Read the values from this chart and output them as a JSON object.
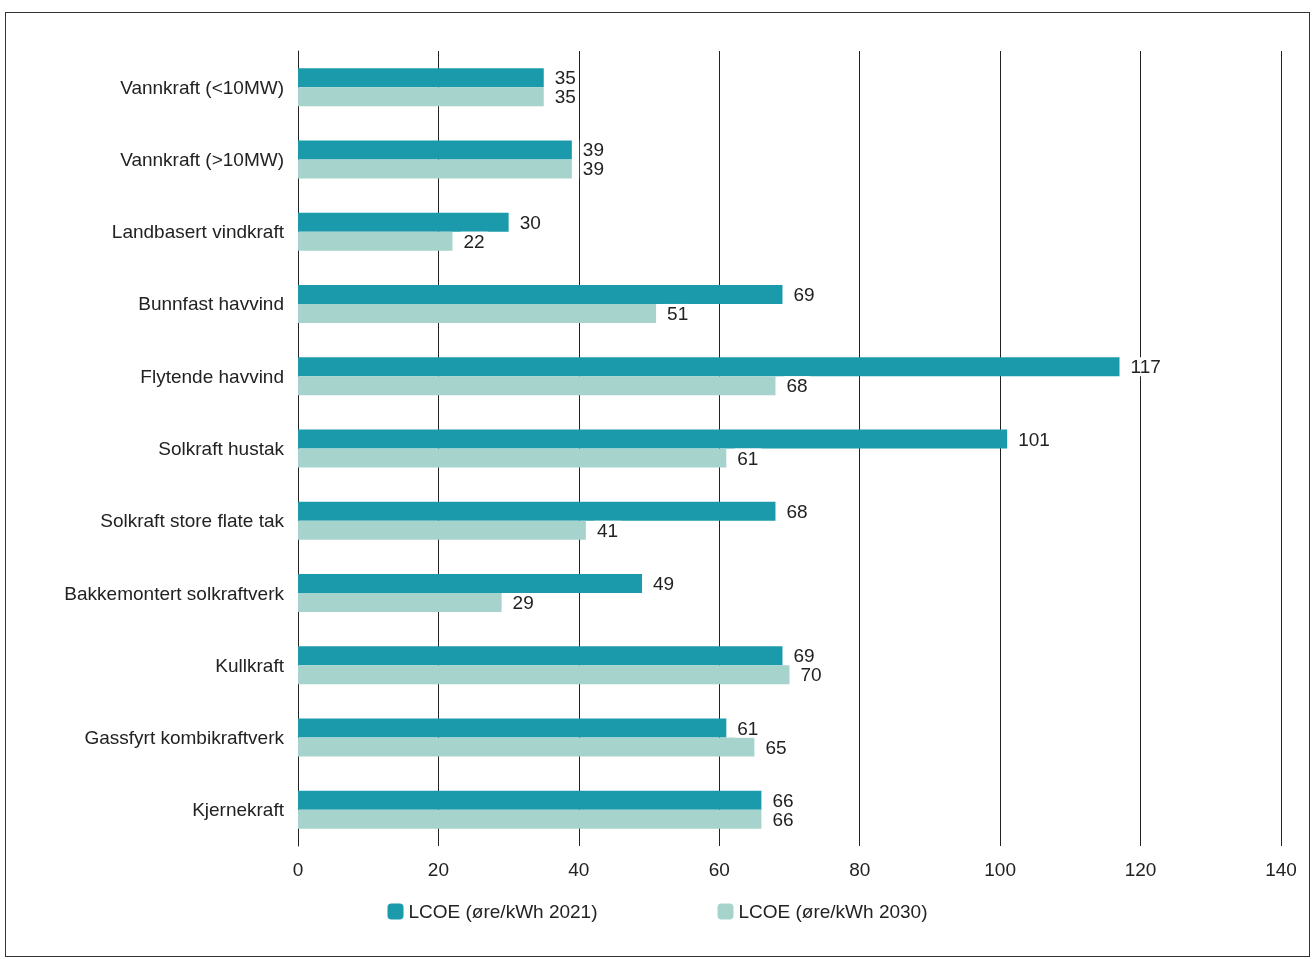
{
  "chart_data": {
    "type": "bar",
    "orientation": "horizontal",
    "categories": [
      "Vannkraft (<10MW)",
      "Vannkraft (>10MW)",
      "Landbasert vindkraft",
      "Bunnfast havvind",
      "Flytende havvind",
      "Solkraft hustak",
      "Solkraft store flate tak",
      "Bakkemontert solkraftverk",
      "Kullkraft",
      "Gassfyrt kombikraftverk",
      "Kjernekraft"
    ],
    "series": [
      {
        "name": "LCOE (øre/kWh 2021)",
        "color": "#1a9aaa",
        "values": [
          35,
          39,
          30,
          69,
          117,
          101,
          68,
          49,
          69,
          61,
          66
        ]
      },
      {
        "name": "LCOE (øre/kWh 2030)",
        "color": "#a6d3cc",
        "values": [
          35,
          39,
          22,
          51,
          68,
          61,
          41,
          29,
          70,
          65,
          66
        ]
      }
    ],
    "xlim": [
      0,
      140
    ],
    "xticks": [
      0,
      20,
      40,
      60,
      80,
      100,
      120,
      140
    ],
    "grid": "x",
    "legend": "bottom",
    "data_labels": true
  }
}
